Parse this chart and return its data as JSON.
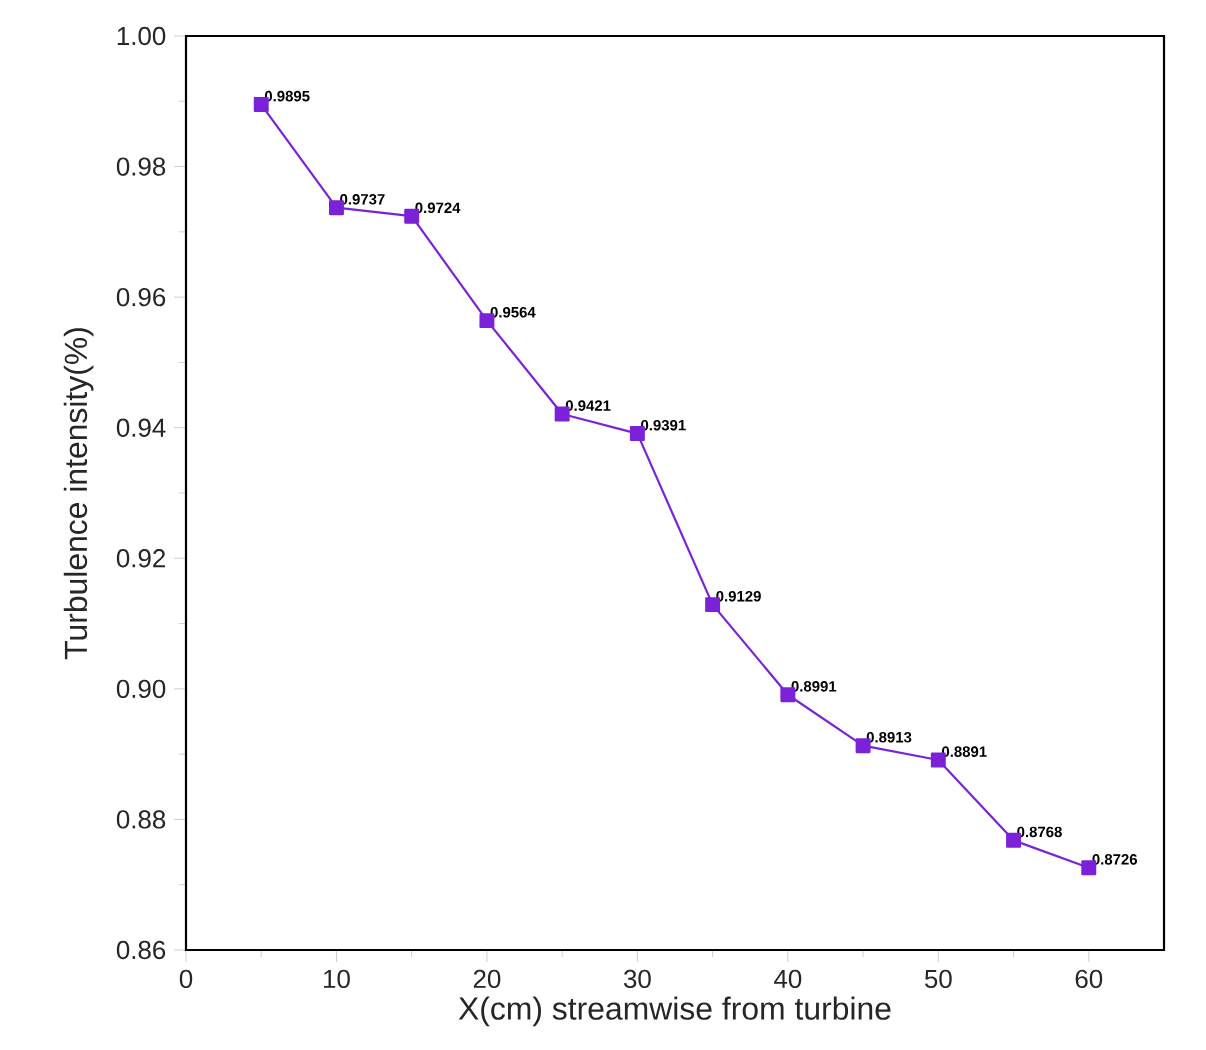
{
  "chart_data": {
    "type": "line",
    "xlabel": "X(cm) streamwise from turbine",
    "ylabel": "Turbulence intensity(%)",
    "x": [
      5,
      10,
      15,
      20,
      25,
      30,
      35,
      40,
      45,
      50,
      55,
      60
    ],
    "values": [
      0.9895,
      0.9737,
      0.9724,
      0.9564,
      0.9421,
      0.9391,
      0.9129,
      0.8991,
      0.8913,
      0.8891,
      0.8768,
      0.8726
    ],
    "color": "#7b22d8",
    "marker": "square",
    "line_style": "solid",
    "data_labels": true,
    "grid": false,
    "xlim": [
      0,
      65
    ],
    "xticks": [
      0,
      10,
      20,
      30,
      40,
      50,
      60
    ],
    "ylim": [
      0.86,
      1.0
    ],
    "yticks": [
      0.86,
      0.88,
      {
        "value": 0.9,
        "label": "0.90"
      },
      0.92,
      0.94,
      0.96,
      0.98,
      {
        "value": 1.0,
        "label": "1.00"
      }
    ]
  }
}
